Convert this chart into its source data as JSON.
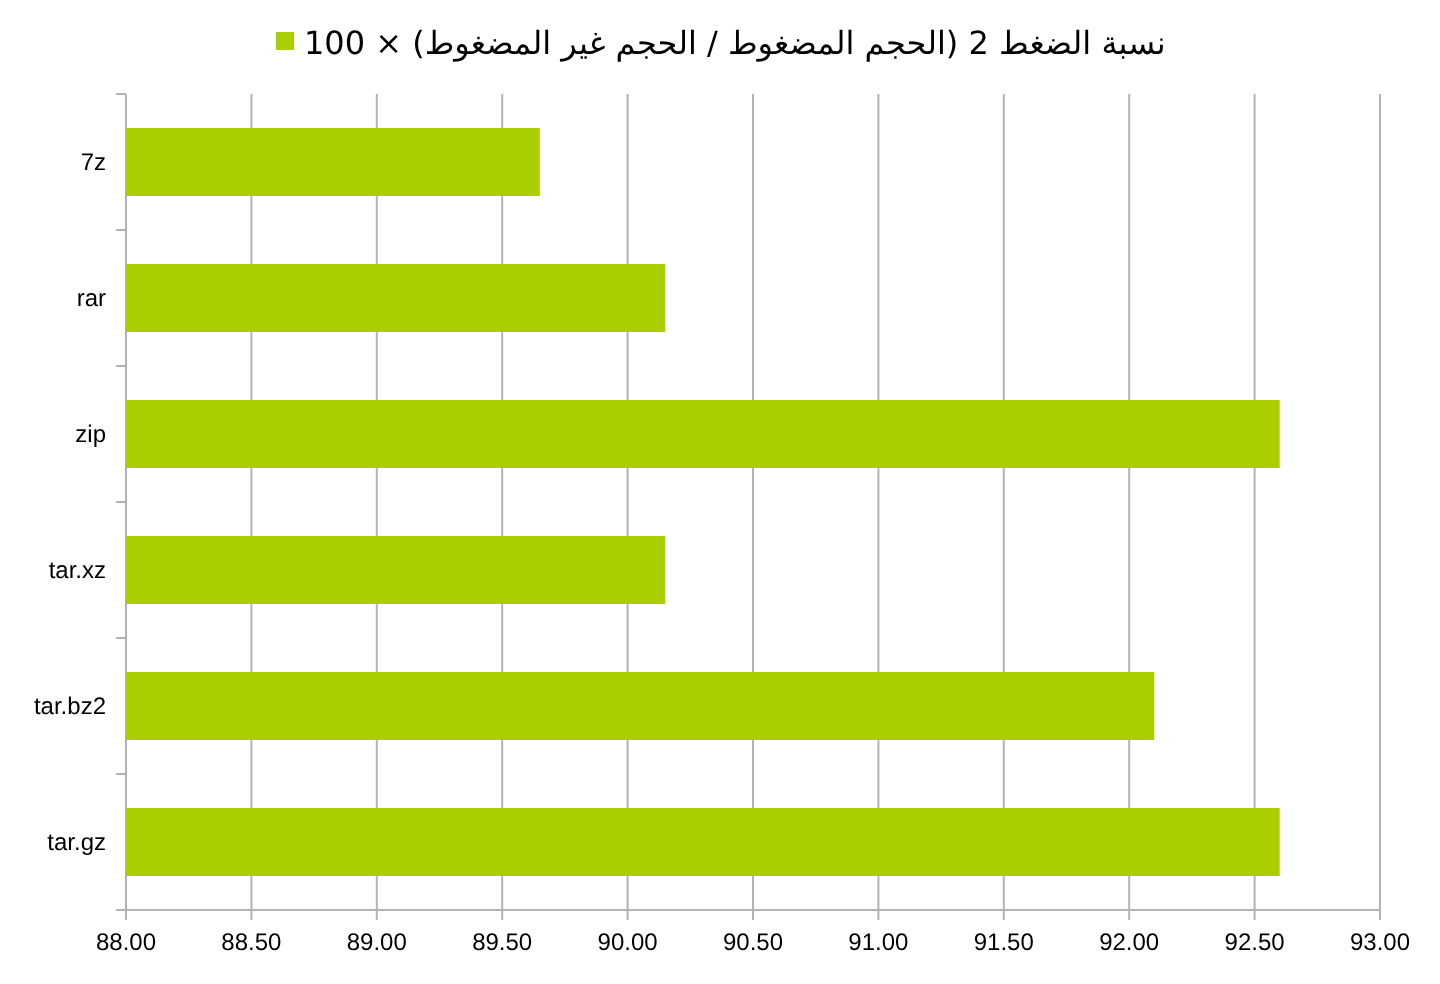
{
  "chart_data": {
    "type": "bar",
    "orientation": "horizontal",
    "categories": [
      "7z",
      "rar",
      "zip",
      "tar.xz",
      "tar.bz2",
      "tar.gz"
    ],
    "series": [
      {
        "name": "نسبة الضغط 2 (الحجم المضغوط / الحجم غير المضغوط) × 100",
        "color": "#aacf00",
        "values": [
          89.65,
          90.15,
          92.6,
          90.15,
          92.1,
          92.6
        ]
      }
    ],
    "xlim": [
      88,
      93
    ],
    "xticks": [
      {
        "value": 88,
        "label": "88.00"
      },
      {
        "value": 88.5,
        "label": "88.50"
      },
      {
        "value": 89,
        "label": "89.00"
      },
      {
        "value": 89.5,
        "label": "89.50"
      },
      {
        "value": 90,
        "label": "90.00"
      },
      {
        "value": 90.5,
        "label": "90.50"
      },
      {
        "value": 91,
        "label": "91.00"
      },
      {
        "value": 91.5,
        "label": "91.50"
      },
      {
        "value": 92,
        "label": "92.00"
      },
      {
        "value": 92.5,
        "label": "92.50"
      },
      {
        "value": 93,
        "label": "93.00"
      }
    ],
    "grid": "x",
    "legend": "top"
  }
}
